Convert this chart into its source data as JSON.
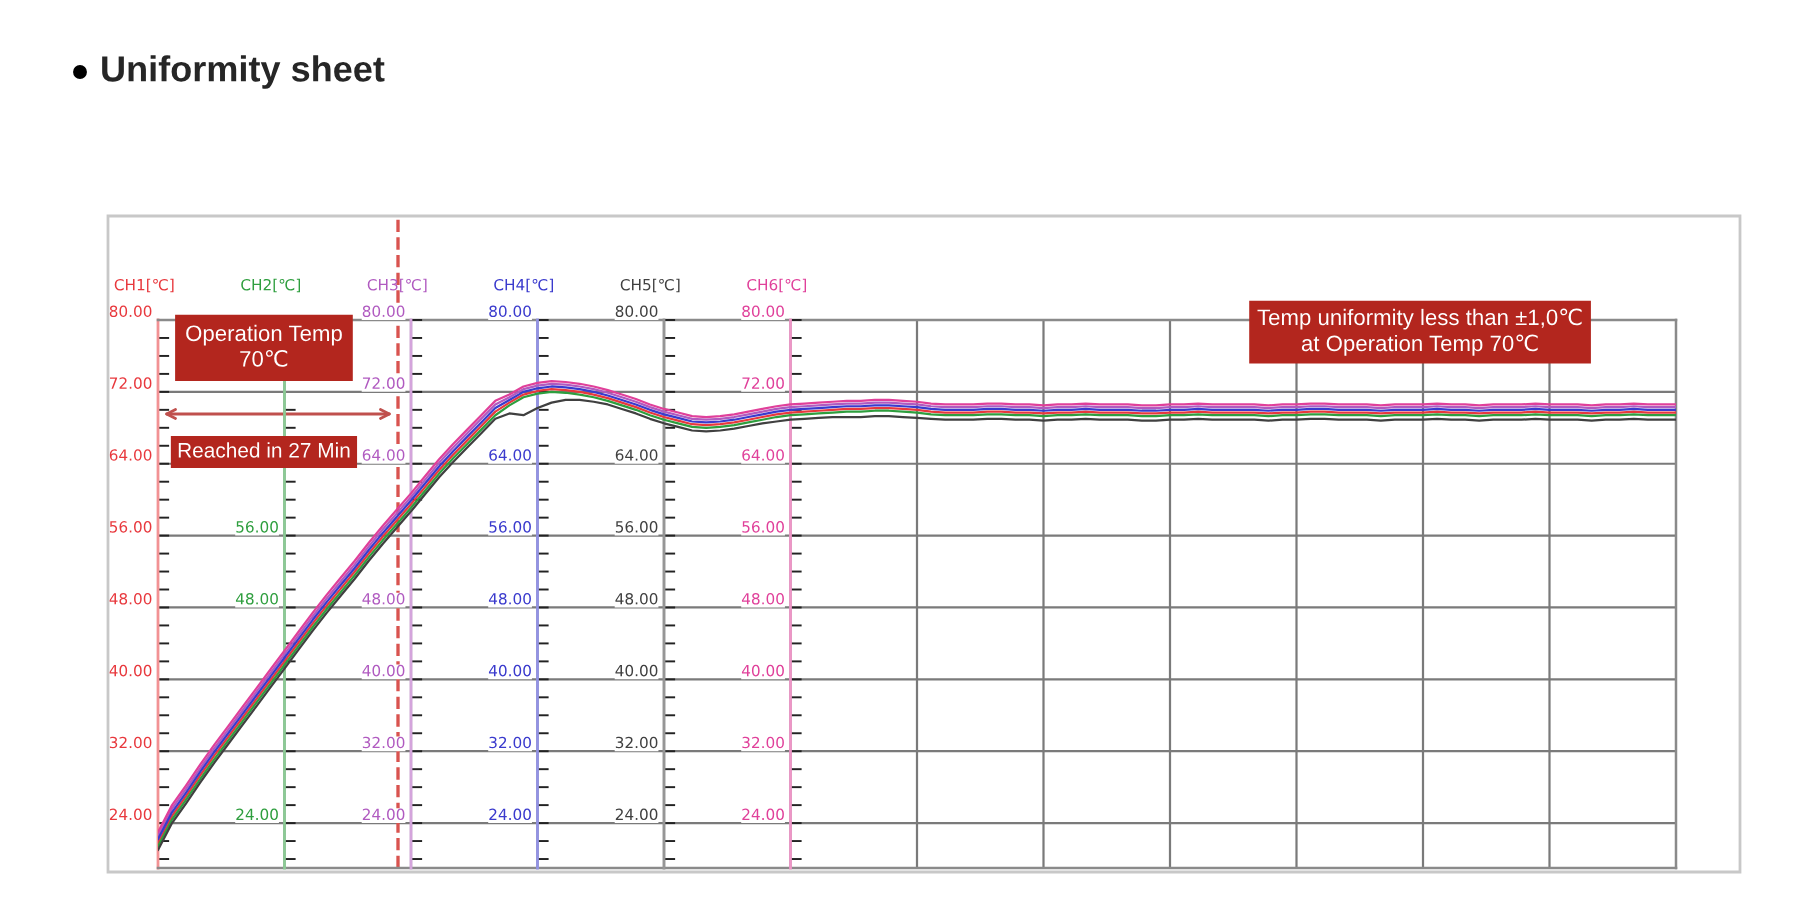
{
  "chart_data": {
    "type": "line",
    "title": "Uniformity sheet",
    "categories": [
      null,
      null,
      null,
      null,
      null,
      null,
      null,
      null,
      null,
      null,
      null,
      null,
      null,
      null,
      null,
      null,
      null,
      null,
      null,
      null,
      null,
      null,
      null,
      null,
      null,
      null,
      null,
      null,
      null,
      null,
      null,
      null,
      null,
      null,
      null,
      null,
      null,
      null,
      null,
      null,
      null,
      null,
      null,
      null,
      null,
      null,
      null,
      null,
      null,
      null,
      null,
      null,
      null,
      null,
      null,
      null,
      null,
      null,
      null,
      null,
      null,
      null,
      null,
      null,
      null,
      null,
      null,
      null,
      null,
      null,
      null,
      null,
      null,
      null,
      null,
      null,
      null,
      null,
      null,
      null,
      null,
      null,
      null,
      null,
      null,
      null,
      null,
      null,
      null,
      null,
      null,
      null,
      null,
      null,
      null,
      null,
      null,
      null,
      null,
      null,
      null,
      null,
      null,
      null,
      null,
      null,
      null,
      null,
      null
    ],
    "series": [
      {
        "name": "CH1[℃]",
        "color": "#e8383d",
        "values": [
          21.8,
          24.8,
          27.0,
          29.3,
          31.5,
          33.6,
          35.7,
          37.8,
          39.9,
          42.0,
          44.1,
          46.2,
          48.2,
          50.1,
          52.0,
          54.0,
          55.9,
          57.7,
          59.5,
          61.4,
          63.3,
          65.0,
          66.6,
          68.2,
          69.8,
          70.8,
          71.7,
          72.1,
          72.3,
          72.2,
          72.0,
          71.7,
          71.3,
          70.8,
          70.3,
          69.7,
          69.2,
          68.8,
          68.4,
          68.3,
          68.4,
          68.6,
          68.9,
          69.2,
          69.5,
          69.7,
          69.8,
          69.9,
          70.0,
          70.1,
          70.1,
          70.2,
          70.2,
          70.1,
          70.0,
          69.8,
          69.7,
          69.7,
          69.7,
          69.8,
          69.8,
          69.7,
          69.7,
          69.6,
          69.7,
          69.7,
          69.8,
          69.7,
          69.7,
          69.7,
          69.6,
          69.6,
          69.7,
          69.7,
          69.8,
          69.7,
          69.7,
          69.7,
          69.7,
          69.6,
          69.7,
          69.7,
          69.8,
          69.8,
          69.7,
          69.7,
          69.7,
          69.6,
          69.7,
          69.7,
          69.7,
          69.8,
          69.7,
          69.7,
          69.6,
          69.7,
          69.7,
          69.7,
          69.8,
          69.7,
          69.7,
          69.7,
          69.6,
          69.7,
          69.7,
          69.8,
          69.7,
          69.7,
          69.7
        ]
      },
      {
        "name": "CH2[℃]",
        "color": "#2e9e3e",
        "values": [
          21.4,
          24.4,
          26.6,
          28.9,
          31.1,
          33.2,
          35.3,
          37.4,
          39.5,
          41.6,
          43.7,
          45.8,
          47.8,
          49.7,
          51.6,
          53.6,
          55.5,
          57.3,
          59.1,
          61.0,
          62.9,
          64.6,
          66.2,
          67.8,
          69.4,
          70.5,
          71.4,
          71.8,
          72.0,
          71.9,
          71.7,
          71.4,
          71.0,
          70.5,
          70.0,
          69.4,
          68.9,
          68.5,
          68.1,
          68.0,
          68.1,
          68.3,
          68.6,
          68.9,
          69.2,
          69.4,
          69.5,
          69.6,
          69.7,
          69.8,
          69.8,
          69.9,
          69.9,
          69.8,
          69.7,
          69.5,
          69.4,
          69.4,
          69.4,
          69.5,
          69.5,
          69.4,
          69.4,
          69.3,
          69.4,
          69.4,
          69.5,
          69.4,
          69.4,
          69.4,
          69.3,
          69.3,
          69.4,
          69.4,
          69.5,
          69.4,
          69.4,
          69.4,
          69.4,
          69.3,
          69.4,
          69.4,
          69.5,
          69.5,
          69.4,
          69.4,
          69.4,
          69.3,
          69.4,
          69.4,
          69.4,
          69.5,
          69.4,
          69.4,
          69.3,
          69.4,
          69.4,
          69.4,
          69.5,
          69.4,
          69.4,
          69.4,
          69.3,
          69.4,
          69.4,
          69.5,
          69.4,
          69.4,
          69.4
        ]
      },
      {
        "name": "CH3[℃]",
        "color": "#b05ac0",
        "values": [
          22.6,
          25.6,
          27.8,
          30.1,
          32.3,
          34.4,
          36.5,
          38.6,
          40.7,
          42.8,
          44.9,
          47.0,
          49.0,
          50.9,
          52.8,
          54.8,
          56.7,
          58.5,
          60.3,
          62.2,
          64.1,
          65.8,
          67.4,
          69.0,
          70.6,
          71.4,
          72.3,
          72.7,
          72.9,
          72.8,
          72.6,
          72.3,
          71.9,
          71.4,
          70.9,
          70.3,
          69.8,
          69.4,
          69.0,
          68.9,
          69.0,
          69.2,
          69.5,
          69.8,
          70.1,
          70.3,
          70.4,
          70.5,
          70.6,
          70.7,
          70.7,
          70.8,
          70.8,
          70.7,
          70.6,
          70.4,
          70.3,
          70.3,
          70.3,
          70.4,
          70.4,
          70.3,
          70.3,
          70.2,
          70.3,
          70.3,
          70.4,
          70.3,
          70.3,
          70.3,
          70.2,
          70.2,
          70.3,
          70.3,
          70.4,
          70.3,
          70.3,
          70.3,
          70.3,
          70.2,
          70.3,
          70.3,
          70.4,
          70.4,
          70.3,
          70.3,
          70.3,
          70.2,
          70.3,
          70.3,
          70.3,
          70.4,
          70.3,
          70.3,
          70.2,
          70.3,
          70.3,
          70.3,
          70.4,
          70.3,
          70.3,
          70.3,
          70.2,
          70.3,
          70.3,
          70.4,
          70.3,
          70.3,
          70.3
        ]
      },
      {
        "name": "CH4[℃]",
        "color": "#3a3acd",
        "values": [
          22.2,
          25.2,
          27.4,
          29.7,
          31.9,
          34.0,
          36.1,
          38.2,
          40.3,
          42.4,
          44.5,
          46.6,
          48.6,
          50.5,
          52.4,
          54.4,
          56.3,
          58.1,
          59.9,
          61.8,
          63.7,
          65.4,
          67.0,
          68.6,
          70.2,
          71.1,
          72.0,
          72.4,
          72.6,
          72.5,
          72.3,
          72.0,
          71.6,
          71.1,
          70.6,
          70.0,
          69.5,
          69.1,
          68.7,
          68.6,
          68.7,
          68.9,
          69.2,
          69.5,
          69.8,
          70.0,
          70.1,
          70.2,
          70.3,
          70.4,
          70.4,
          70.5,
          70.5,
          70.4,
          70.3,
          70.1,
          70.0,
          70.0,
          70.0,
          70.1,
          70.1,
          70.0,
          70.0,
          69.9,
          70.0,
          70.0,
          70.1,
          70.0,
          70.0,
          70.0,
          69.9,
          69.9,
          70.0,
          70.0,
          70.1,
          70.0,
          70.0,
          70.0,
          70.0,
          69.9,
          70.0,
          70.0,
          70.1,
          70.1,
          70.0,
          70.0,
          70.0,
          69.9,
          70.0,
          70.0,
          70.0,
          70.1,
          70.0,
          70.0,
          69.9,
          70.0,
          70.0,
          70.0,
          70.1,
          70.0,
          70.0,
          70.0,
          69.9,
          70.0,
          70.0,
          70.1,
          70.0,
          70.0,
          70.0
        ]
      },
      {
        "name": "CH5[℃]",
        "color": "#404040",
        "values": [
          21.0,
          24.0,
          26.2,
          28.5,
          30.7,
          32.8,
          34.9,
          37.0,
          39.1,
          41.2,
          43.3,
          45.4,
          47.4,
          49.3,
          51.2,
          53.2,
          55.1,
          56.9,
          58.7,
          60.6,
          62.5,
          64.2,
          65.8,
          67.4,
          69.0,
          69.6,
          69.4,
          70.2,
          70.8,
          71.1,
          71.1,
          70.9,
          70.6,
          70.1,
          69.6,
          69.0,
          68.5,
          68.1,
          67.7,
          67.6,
          67.7,
          67.9,
          68.2,
          68.5,
          68.7,
          68.9,
          69.0,
          69.1,
          69.2,
          69.2,
          69.2,
          69.3,
          69.3,
          69.2,
          69.1,
          69.0,
          68.9,
          68.9,
          68.9,
          69.0,
          69.0,
          68.9,
          68.9,
          68.8,
          68.9,
          68.9,
          69.0,
          68.9,
          68.9,
          68.9,
          68.8,
          68.8,
          68.9,
          68.9,
          69.0,
          68.9,
          68.9,
          68.9,
          68.9,
          68.8,
          68.9,
          68.9,
          69.0,
          69.0,
          68.9,
          68.9,
          68.9,
          68.8,
          68.9,
          68.9,
          68.9,
          69.0,
          68.9,
          68.9,
          68.8,
          68.9,
          68.9,
          68.9,
          69.0,
          68.9,
          68.9,
          68.9,
          68.8,
          68.9,
          68.9,
          69.0,
          68.9,
          68.9,
          68.9
        ]
      },
      {
        "name": "CH6[℃]",
        "color": "#e0409a",
        "values": [
          23.0,
          26.0,
          28.2,
          30.5,
          32.7,
          34.8,
          36.9,
          39.0,
          41.1,
          43.2,
          45.3,
          47.4,
          49.4,
          51.3,
          53.2,
          55.2,
          57.1,
          58.9,
          60.7,
          62.6,
          64.5,
          66.2,
          67.8,
          69.4,
          71.0,
          71.7,
          72.6,
          73.0,
          73.2,
          73.1,
          72.9,
          72.6,
          72.2,
          71.7,
          71.2,
          70.6,
          70.1,
          69.7,
          69.3,
          69.2,
          69.3,
          69.5,
          69.8,
          70.1,
          70.4,
          70.6,
          70.7,
          70.8,
          70.9,
          71.0,
          71.0,
          71.1,
          71.1,
          71.0,
          70.9,
          70.7,
          70.6,
          70.6,
          70.6,
          70.7,
          70.7,
          70.6,
          70.6,
          70.5,
          70.6,
          70.6,
          70.7,
          70.6,
          70.6,
          70.6,
          70.5,
          70.5,
          70.6,
          70.6,
          70.7,
          70.6,
          70.6,
          70.6,
          70.6,
          70.5,
          70.6,
          70.6,
          70.7,
          70.7,
          70.6,
          70.6,
          70.6,
          70.5,
          70.6,
          70.6,
          70.6,
          70.7,
          70.6,
          70.6,
          70.5,
          70.6,
          70.6,
          70.6,
          70.7,
          70.6,
          70.6,
          70.6,
          70.5,
          70.6,
          70.6,
          70.7,
          70.6,
          70.6,
          70.6
        ]
      }
    ],
    "ylim": [
      19,
      80
    ],
    "yticks": [
      {
        "value": 20,
        "label": null
      },
      {
        "value": 22,
        "label": null
      },
      {
        "value": 24,
        "label": "24.00"
      },
      {
        "value": 26,
        "label": null
      },
      {
        "value": 28,
        "label": null
      },
      {
        "value": 30,
        "label": null
      },
      {
        "value": 32,
        "label": "32.00"
      },
      {
        "value": 34,
        "label": null
      },
      {
        "value": 36,
        "label": null
      },
      {
        "value": 38,
        "label": null
      },
      {
        "value": 40,
        "label": "40.00"
      },
      {
        "value": 42,
        "label": null
      },
      {
        "value": 44,
        "label": null
      },
      {
        "value": 46,
        "label": null
      },
      {
        "value": 48,
        "label": "48.00"
      },
      {
        "value": 50,
        "label": null
      },
      {
        "value": 52,
        "label": null
      },
      {
        "value": 54,
        "label": null
      },
      {
        "value": 56,
        "label": "56.00"
      },
      {
        "value": 58,
        "label": null
      },
      {
        "value": 60,
        "label": null
      },
      {
        "value": 62,
        "label": null
      },
      {
        "value": 64,
        "label": "64.00"
      },
      {
        "value": 66,
        "label": null
      },
      {
        "value": 68,
        "label": null
      },
      {
        "value": 70,
        "label": null
      },
      {
        "value": 72,
        "label": "72.00"
      },
      {
        "value": 74,
        "label": null
      },
      {
        "value": 76,
        "label": null
      },
      {
        "value": 78,
        "label": null
      },
      {
        "value": 80,
        "label": "80.00"
      }
    ],
    "annotations": [
      "Operation Temp\n70℃",
      "Temp uniformity less than ±1,0℃\nat Operation Temp 70℃",
      "Reached in 27 Min"
    ],
    "grid": true
  }
}
